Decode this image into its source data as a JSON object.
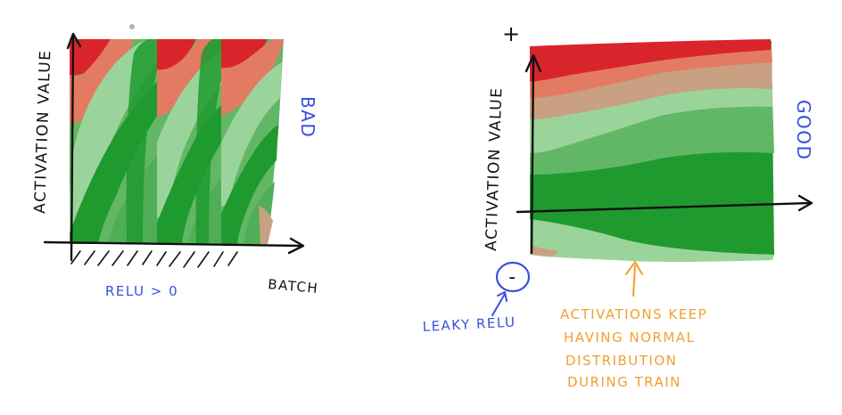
{
  "left_panel": {
    "y_axis_label": "ACTIVATION VALUE",
    "x_axis_label": "BATCH",
    "verdict": "BAD",
    "region_note": "RELU > 0"
  },
  "right_panel": {
    "y_axis_label": "ACTIVATION VALUE",
    "plus_marker": "+",
    "minus_marker": "-",
    "verdict": "GOOD",
    "function_label": "LEAKY RELU",
    "note_lines": [
      "ACTIVATIONS KEEP",
      "HAVING NORMAL",
      "DISTRIBUTION",
      "DURING TRAIN"
    ]
  },
  "colors": {
    "ink": "#111111",
    "blue_ink": "#3a4fe0",
    "orange_ink": "#f0a030",
    "red": "#d9242b",
    "salmon": "#e27b62",
    "tan": "#c9a081",
    "light_green": "#9bd49a",
    "mid_green": "#62b766",
    "dark_green": "#1f9a2f"
  }
}
